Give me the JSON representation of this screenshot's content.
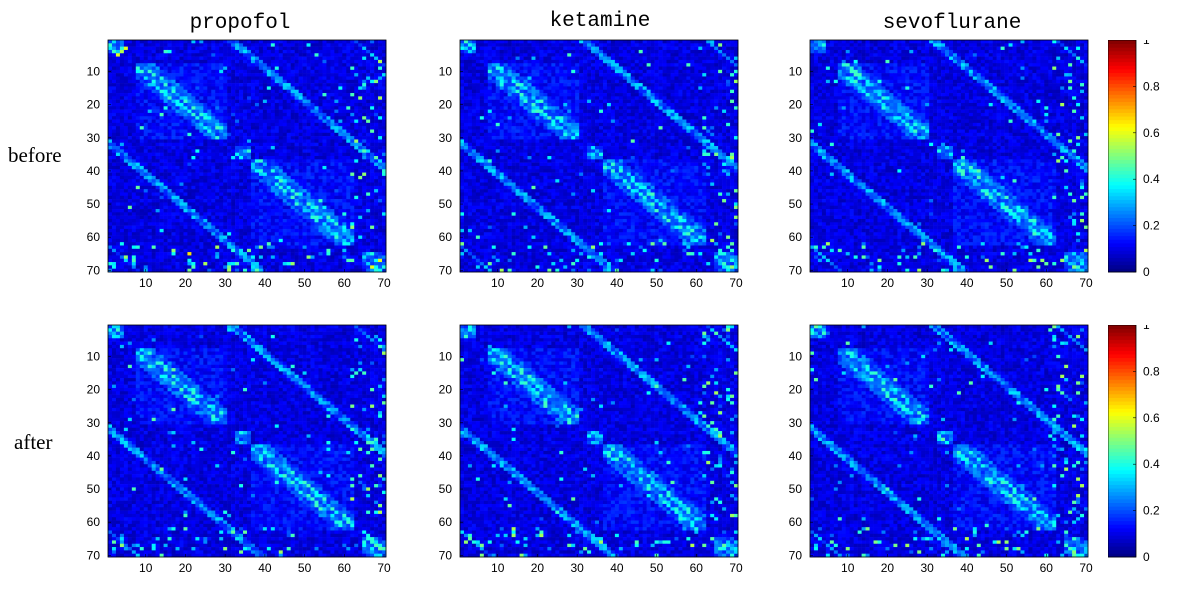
{
  "chart_data": {
    "type": "heatmap",
    "columns": [
      "propofol",
      "ketamine",
      "sevoflurane"
    ],
    "rows": [
      "before",
      "after"
    ],
    "matrix_size": 70,
    "x_ticks": [
      "10",
      "20",
      "30",
      "40",
      "50",
      "60",
      "70"
    ],
    "y_ticks": [
      "10",
      "20",
      "30",
      "40",
      "50",
      "60",
      "70"
    ],
    "xlim": [
      0.5,
      70.5
    ],
    "ylim": [
      0.5,
      70.5
    ],
    "colormap": "jet",
    "color_range": [
      0,
      1
    ],
    "colorbar_ticks": [
      "0",
      "0.2",
      "0.4",
      "0.6",
      "0.8",
      "1"
    ],
    "panels": [
      {
        "column": "propofol",
        "row": "before",
        "blocks": [
          [
            1,
            4
          ],
          [
            8,
            30
          ],
          [
            33,
            36
          ],
          [
            37,
            62
          ],
          [
            65,
            70
          ]
        ]
      },
      {
        "column": "ketamine",
        "row": "before",
        "blocks": [
          [
            1,
            4
          ],
          [
            8,
            30
          ],
          [
            33,
            36
          ],
          [
            37,
            62
          ],
          [
            65,
            70
          ]
        ]
      },
      {
        "column": "sevoflurane",
        "row": "before",
        "blocks": [
          [
            1,
            4
          ],
          [
            8,
            30
          ],
          [
            33,
            36
          ],
          [
            37,
            62
          ],
          [
            65,
            70
          ]
        ]
      },
      {
        "column": "propofol",
        "row": "after",
        "blocks": [
          [
            1,
            4
          ],
          [
            8,
            30
          ],
          [
            33,
            36
          ],
          [
            37,
            62
          ],
          [
            65,
            70
          ]
        ]
      },
      {
        "column": "ketamine",
        "row": "after",
        "blocks": [
          [
            1,
            4
          ],
          [
            8,
            30
          ],
          [
            33,
            36
          ],
          [
            37,
            62
          ],
          [
            65,
            70
          ]
        ]
      },
      {
        "column": "sevoflurane",
        "row": "after",
        "blocks": [
          [
            1,
            4
          ],
          [
            8,
            30
          ],
          [
            33,
            36
          ],
          [
            37,
            62
          ],
          [
            65,
            70
          ]
        ]
      }
    ]
  }
}
